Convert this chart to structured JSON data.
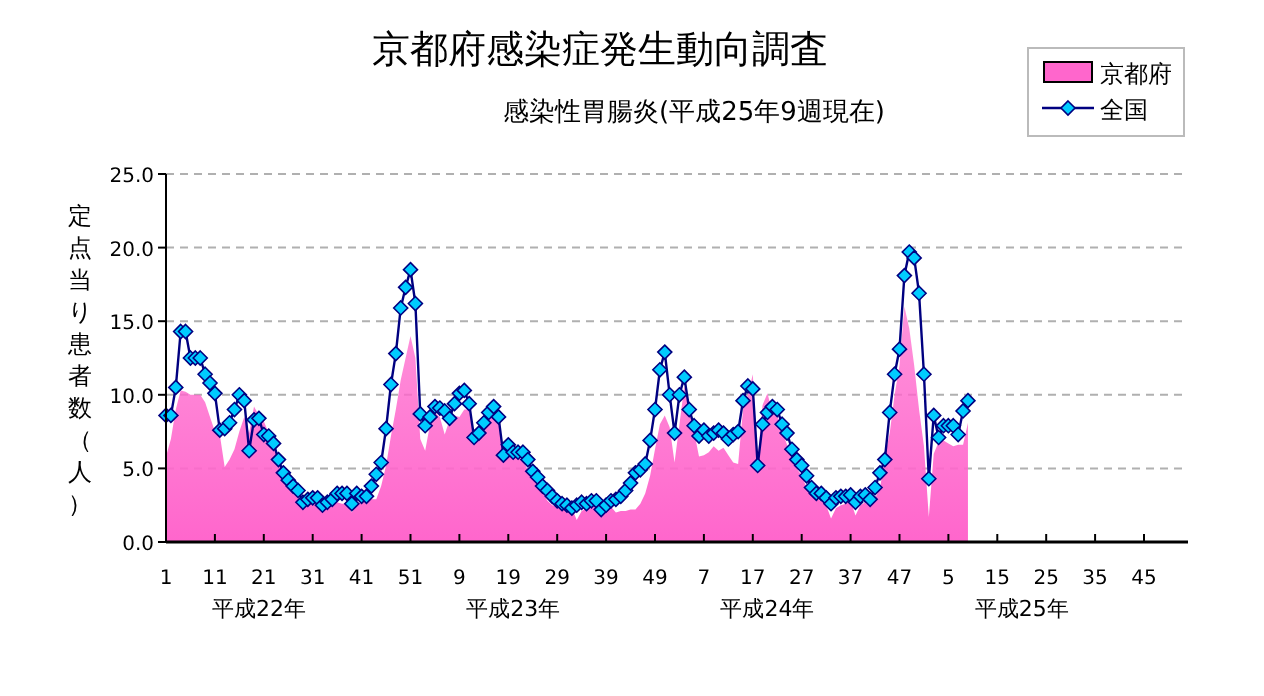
{
  "chart_data": {
    "type": "area",
    "title": "京都府感染症発生動向調査",
    "subtitle": "感染性胃腸炎(平成25年9週現在)",
    "ylabel": "定点当り患者数（人）",
    "annotations": [
      "平成22年",
      "平成23年",
      "平成24年",
      "平成25年"
    ],
    "categories": [
      "1",
      null,
      null,
      null,
      null,
      null,
      null,
      null,
      null,
      null,
      "11",
      null,
      null,
      null,
      null,
      null,
      null,
      null,
      null,
      null,
      "21",
      null,
      null,
      null,
      null,
      null,
      null,
      null,
      null,
      null,
      "31",
      null,
      null,
      null,
      null,
      null,
      null,
      null,
      null,
      null,
      "41",
      null,
      null,
      null,
      null,
      null,
      null,
      null,
      null,
      null,
      "51",
      null,
      null,
      null,
      null,
      null,
      null,
      null,
      null,
      null,
      "9",
      null,
      null,
      null,
      null,
      null,
      null,
      null,
      null,
      null,
      "19",
      null,
      null,
      null,
      null,
      null,
      null,
      null,
      null,
      null,
      "29",
      null,
      null,
      null,
      null,
      null,
      null,
      null,
      null,
      null,
      "39",
      null,
      null,
      null,
      null,
      null,
      null,
      null,
      null,
      null,
      "49",
      null,
      null,
      null,
      null,
      null,
      null,
      null,
      null,
      null,
      "7",
      null,
      null,
      null,
      null,
      null,
      null,
      null,
      null,
      null,
      "17",
      null,
      null,
      null,
      null,
      null,
      null,
      null,
      null,
      null,
      "27",
      null,
      null,
      null,
      null,
      null,
      null,
      null,
      null,
      null,
      "37",
      null,
      null,
      null,
      null,
      null,
      null,
      null,
      null,
      null,
      "47",
      null,
      null,
      null,
      null,
      null,
      null,
      null,
      null,
      null,
      "5",
      null,
      null,
      null,
      null,
      null,
      null,
      null,
      null,
      null,
      "15",
      null,
      null,
      null,
      null,
      null,
      null,
      null,
      null,
      null,
      "25",
      null,
      null,
      null,
      null,
      null,
      null,
      null,
      null,
      null,
      "35",
      null,
      null,
      null,
      null,
      null,
      null,
      null,
      null,
      null,
      "45",
      null,
      null,
      null,
      null,
      null,
      null,
      null,
      null
    ],
    "series": [
      {
        "name": "京都府",
        "color": "#ff66cc",
        "values": [
          5.8,
          7.0,
          9.0,
          10.3,
          10.2,
          10.0,
          10.0,
          10.0,
          9.5,
          8.5,
          7.5,
          7.3,
          5.1,
          5.6,
          6.3,
          7.5,
          8.5,
          7.4,
          9.2,
          8.6,
          8.2,
          7.4,
          6.7,
          5.8,
          4.8,
          4.2,
          3.7,
          3.1,
          2.8,
          2.8,
          2.8,
          2.5,
          2.6,
          2.7,
          2.8,
          2.7,
          2.6,
          2.6,
          2.0,
          2.6,
          2.7,
          2.8,
          2.9,
          2.9,
          3.8,
          5.2,
          7.2,
          9.0,
          11.0,
          12.5,
          14.0,
          12.5,
          7.0,
          6.2,
          8.0,
          8.8,
          8.5,
          7.3,
          8.3,
          8.6,
          8.5,
          9.0,
          9.0,
          7.2,
          7.6,
          8.0,
          8.8,
          9.2,
          8.3,
          6.2,
          6.5,
          6.0,
          5.8,
          5.5,
          4.9,
          4.4,
          4.0,
          3.4,
          2.8,
          2.5,
          2.4,
          2.3,
          2.3,
          2.3,
          1.5,
          2.1,
          2.3,
          2.3,
          2.5,
          2.1,
          2.3,
          2.4,
          2.0,
          2.1,
          2.1,
          2.2,
          2.2,
          2.6,
          3.3,
          4.5,
          6.3,
          8.0,
          8.6,
          7.8,
          5.4,
          8.0,
          10.6,
          9.0,
          7.5,
          5.8,
          5.9,
          6.1,
          6.5,
          6.2,
          6.4,
          5.9,
          5.4,
          5.3,
          9.0,
          10.0,
          11.4,
          5.6,
          9.3,
          10.1,
          8.8,
          8.6,
          7.5,
          6.6,
          5.6,
          5.0,
          4.5,
          3.7,
          3.2,
          2.9,
          2.8,
          2.5,
          1.6,
          2.3,
          2.5,
          2.6,
          2.8,
          1.8,
          2.5,
          2.7,
          2.5,
          3.0,
          3.6,
          5.8,
          7.4,
          10.0,
          12.0,
          16.0,
          14.5,
          12.0,
          9.0,
          6.5,
          1.7,
          6.0,
          6.8,
          6.9,
          6.7,
          6.5,
          6.6,
          6.6,
          8.1,
          null,
          null,
          null,
          null,
          null,
          null,
          null,
          null,
          null,
          null,
          null,
          null,
          null,
          null,
          null,
          null,
          null,
          null,
          null,
          null,
          null,
          null,
          null,
          null,
          null,
          null,
          null,
          null,
          null,
          null,
          null,
          null,
          null,
          null,
          null,
          null,
          null,
          null,
          null,
          null,
          null,
          null,
          null,
          null
        ]
      },
      {
        "name": "全国",
        "type": "line",
        "marker": "diamond",
        "color": "#000080",
        "values": [
          8.6,
          8.6,
          10.5,
          14.3,
          14.3,
          12.5,
          12.5,
          12.5,
          11.4,
          10.8,
          10.1,
          7.6,
          7.7,
          8.1,
          9.0,
          10.0,
          9.6,
          6.2,
          8.3,
          8.4,
          7.3,
          7.2,
          6.7,
          5.6,
          4.7,
          4.2,
          3.8,
          3.5,
          2.7,
          2.9,
          3.0,
          3.0,
          2.5,
          2.7,
          2.9,
          3.3,
          3.3,
          3.3,
          2.6,
          3.3,
          3.1,
          3.1,
          3.8,
          4.6,
          5.4,
          7.7,
          10.7,
          12.8,
          15.9,
          17.3,
          18.5,
          16.2,
          8.7,
          7.9,
          8.5,
          9.2,
          9.1,
          8.9,
          8.4,
          9.4,
          10.1,
          10.3,
          9.4,
          7.1,
          7.4,
          8.1,
          8.8,
          9.2,
          8.5,
          5.9,
          6.6,
          6.1,
          6.1,
          6.1,
          5.6,
          4.8,
          4.4,
          3.8,
          3.5,
          3.1,
          2.8,
          2.6,
          2.5,
          2.3,
          2.5,
          2.7,
          2.6,
          2.8,
          2.8,
          2.2,
          2.5,
          2.8,
          2.9,
          3.1,
          3.5,
          4.0,
          4.7,
          4.9,
          5.3,
          6.9,
          9.0,
          11.7,
          12.9,
          10.0,
          7.4,
          10.0,
          11.2,
          9.0,
          7.9,
          7.2,
          7.6,
          7.2,
          7.4,
          7.6,
          7.4,
          7.0,
          7.3,
          7.5,
          9.6,
          10.6,
          10.4,
          5.2,
          8.0,
          8.8,
          9.2,
          9.0,
          8.0,
          7.4,
          6.3,
          5.6,
          5.2,
          4.5,
          3.7,
          3.3,
          3.3,
          3.0,
          2.6,
          3.0,
          3.1,
          3.1,
          3.2,
          2.7,
          3.1,
          3.2,
          2.9,
          3.7,
          4.7,
          5.6,
          8.8,
          11.4,
          13.1,
          18.1,
          19.7,
          19.3,
          16.9,
          11.4,
          4.3,
          8.6,
          7.1,
          7.9,
          7.9,
          7.9,
          7.3,
          8.9,
          9.6,
          null,
          null,
          null,
          null,
          null,
          null,
          null,
          null,
          null,
          null,
          null,
          null,
          null,
          null,
          null,
          null,
          null,
          null,
          null,
          null,
          null,
          null,
          null,
          null,
          null,
          null,
          null,
          null,
          null,
          null,
          null,
          null,
          null,
          null,
          null,
          null,
          null,
          null,
          null,
          null,
          null,
          null,
          null,
          null
        ]
      }
    ],
    "ylim": [
      0,
      25
    ],
    "yticks": [
      {
        "value": 0,
        "label": "0.0"
      },
      {
        "value": 5,
        "label": "5.0"
      },
      {
        "value": 10,
        "label": "10.0"
      },
      {
        "value": 15,
        "label": "15.0"
      },
      {
        "value": 20,
        "label": "20.0"
      },
      {
        "value": 25,
        "label": "25.0"
      }
    ],
    "grid": "y",
    "legend": "top right",
    "line_style": "solid"
  }
}
